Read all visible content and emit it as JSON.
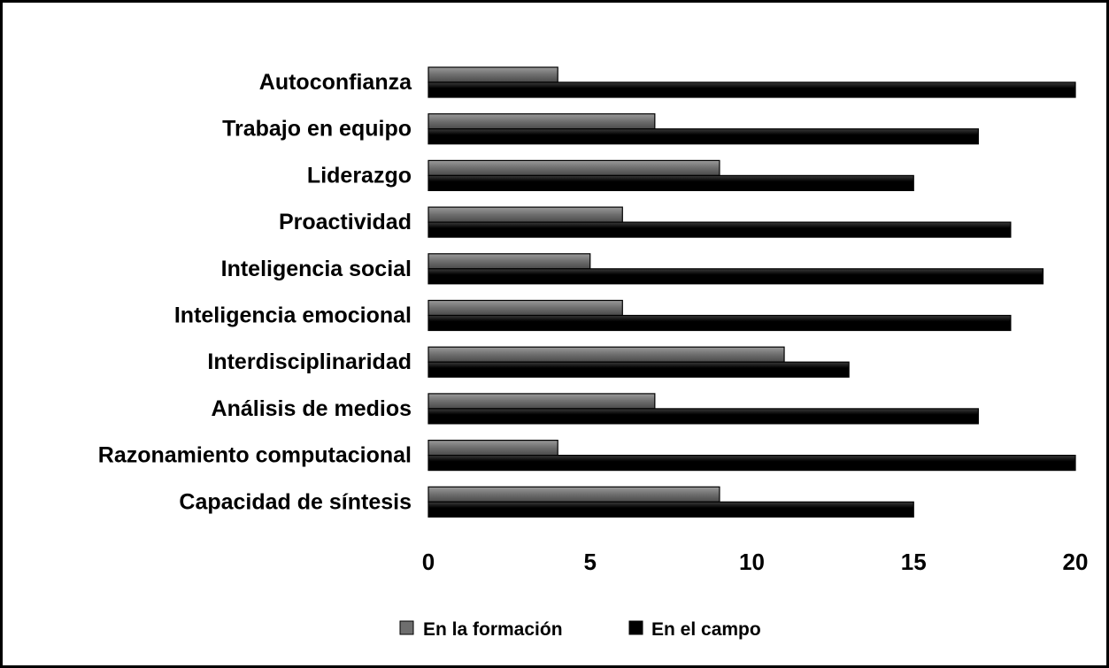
{
  "chart_data": {
    "type": "bar",
    "orientation": "horizontal",
    "categories": [
      "Autoconfianza",
      "Trabajo en equipo",
      "Liderazgo",
      "Proactividad",
      "Inteligencia social",
      "Inteligencia emocional",
      "Interdisciplinaridad",
      "Análisis de medios",
      "Razonamiento computacional",
      "Capacidad de síntesis"
    ],
    "series": [
      {
        "name": "En la formación",
        "color": "#6e6e6e",
        "values": [
          4,
          7,
          9,
          6,
          5,
          6,
          11,
          7,
          4,
          9
        ]
      },
      {
        "name": "En el campo",
        "color": "#000000",
        "values": [
          20,
          17,
          15,
          18,
          19,
          18,
          13,
          17,
          20,
          15
        ]
      }
    ],
    "xlim": [
      0,
      20
    ],
    "xticks": [
      "0",
      "5",
      "10",
      "15",
      "20"
    ],
    "grid": false,
    "legend_position": "bottom"
  }
}
